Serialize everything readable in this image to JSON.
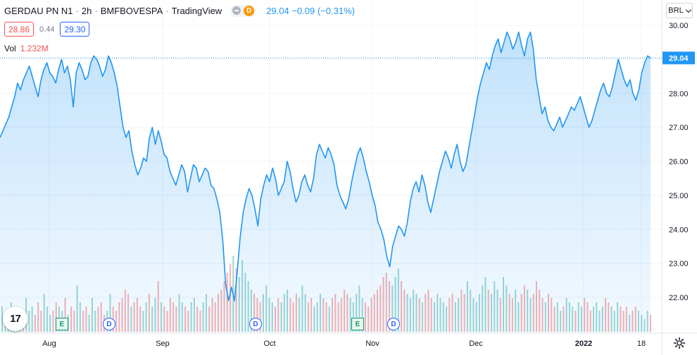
{
  "header": {
    "symbol": "GERDAU PN N1",
    "interval": "2h",
    "exchange": "BMFBOVESPA",
    "source": "TradingView",
    "separator": "·",
    "badge_letter": "D",
    "quote": "29.04 −0.09 (−0.31%)"
  },
  "ohlc": {
    "bid": "28.86",
    "spread": "0.44",
    "ask": "29.30"
  },
  "volume": {
    "label": "Vol",
    "value": "1.232M"
  },
  "currency": "BRL",
  "logo_text": "17",
  "events": [
    {
      "type": "E",
      "label": "E"
    },
    {
      "type": "D",
      "label": "D"
    },
    {
      "type": "D",
      "label": "D"
    },
    {
      "type": "E",
      "label": "E"
    },
    {
      "type": "D",
      "label": "D"
    }
  ],
  "colors": {
    "line": "#2196f3",
    "area": "#2196f3",
    "vol_up": "#26a69a",
    "vol_down": "#ef5350",
    "grid": "#f0f3fa"
  },
  "chart_data": {
    "type": "area",
    "title": "GERDAU PN N1",
    "ylabel": "",
    "ylim": [
      21.3,
      30.3
    ],
    "y_ticks": [
      "22.00",
      "23.00",
      "24.00",
      "25.00",
      "26.00",
      "27.00",
      "28.00",
      "29.00",
      "30.00"
    ],
    "x_ticks": [
      "Aug",
      "Sep",
      "Oct",
      "Nov",
      "Dec",
      "2022",
      "18"
    ],
    "last_price": "29.04",
    "grid": true,
    "series": [
      {
        "name": "",
        "values": [
          26.7,
          26.9,
          27.1,
          27.3,
          27.6,
          27.9,
          28.3,
          28.1,
          28.4,
          28.6,
          28.8,
          28.5,
          28.2,
          27.9,
          28.4,
          28.7,
          28.9,
          28.6,
          28.5,
          28.3,
          28.7,
          29.0,
          28.6,
          28.8,
          28.4,
          27.6,
          28.6,
          28.9,
          28.7,
          28.4,
          28.5,
          28.9,
          29.1,
          29.0,
          28.8,
          28.5,
          28.7,
          29.1,
          28.9,
          28.6,
          28.2,
          27.6,
          27.0,
          26.7,
          26.9,
          26.3,
          25.9,
          25.6,
          25.8,
          26.1,
          26.0,
          26.7,
          27.0,
          26.5,
          26.9,
          26.6,
          26.2,
          26.1,
          25.7,
          25.5,
          25.3,
          25.6,
          25.9,
          25.7,
          25.1,
          25.5,
          25.9,
          25.8,
          25.4,
          25.6,
          25.8,
          25.7,
          25.3,
          25.2,
          24.9,
          24.5,
          23.7,
          22.4,
          21.9,
          22.3,
          21.9,
          22.8,
          23.8,
          24.5,
          24.9,
          25.2,
          25.0,
          24.6,
          24.1,
          24.9,
          25.3,
          25.6,
          25.4,
          25.8,
          25.5,
          25.0,
          25.2,
          25.4,
          26.0,
          25.7,
          25.2,
          24.8,
          25.0,
          25.4,
          25.6,
          25.3,
          25.1,
          25.5,
          26.2,
          26.5,
          26.3,
          26.1,
          26.4,
          26.2,
          25.9,
          25.3,
          25.0,
          24.8,
          24.6,
          24.9,
          25.4,
          25.8,
          26.2,
          26.4,
          26.1,
          25.7,
          25.4,
          25.0,
          24.7,
          24.2,
          24.0,
          23.7,
          23.2,
          22.9,
          23.5,
          23.8,
          24.1,
          24.0,
          23.8,
          24.2,
          24.8,
          25.2,
          25.4,
          25.1,
          25.6,
          25.3,
          24.8,
          24.5,
          24.9,
          25.3,
          25.7,
          26.0,
          26.3,
          26.1,
          25.8,
          26.2,
          26.5,
          26.0,
          25.7,
          25.9,
          26.4,
          26.9,
          27.4,
          27.9,
          28.3,
          28.6,
          28.9,
          28.7,
          29.1,
          29.4,
          29.6,
          29.2,
          29.5,
          29.8,
          29.6,
          29.3,
          29.5,
          29.8,
          29.4,
          29.1,
          29.6,
          29.8,
          29.3,
          28.4,
          27.9,
          27.4,
          27.6,
          27.2,
          27.0,
          26.9,
          27.1,
          27.3,
          27.0,
          27.2,
          27.4,
          27.6,
          27.5,
          27.7,
          27.9,
          27.6,
          27.3,
          27.0,
          27.2,
          27.5,
          27.8,
          28.1,
          28.3,
          28.0,
          27.9,
          28.2,
          28.6,
          29.0,
          28.7,
          28.4,
          28.2,
          28.4,
          28.0,
          27.8,
          28.1,
          28.6,
          28.9,
          29.1,
          29.04
        ]
      }
    ],
    "volume_values": [
      0.6,
      0.4,
      0.5,
      0.7,
      0.3,
      0.6,
      0.5,
      0.4,
      0.8,
      0.5,
      0.6,
      0.4,
      0.7,
      0.5,
      0.9,
      0.6,
      0.4,
      0.5,
      0.7,
      0.6,
      0.5,
      0.8,
      0.4,
      0.6,
      0.5,
      1.1,
      0.7,
      0.5,
      0.6,
      0.4,
      0.8,
      0.5,
      0.6,
      0.7,
      0.4,
      0.5,
      0.9,
      0.6,
      0.5,
      0.7,
      0.8,
      1.0,
      0.9,
      0.6,
      0.7,
      0.8,
      0.6,
      0.5,
      0.7,
      0.9,
      0.6,
      0.8,
      1.2,
      0.7,
      0.6,
      0.5,
      0.8,
      0.7,
      0.6,
      0.9,
      0.7,
      0.6,
      0.5,
      0.7,
      0.8,
      0.6,
      0.5,
      0.7,
      0.9,
      0.6,
      0.8,
      0.7,
      0.9,
      1.0,
      1.2,
      1.4,
      1.6,
      1.8,
      1.5,
      1.3,
      1.7,
      1.4,
      1.2,
      1.0,
      0.9,
      0.8,
      0.7,
      0.9,
      1.1,
      0.8,
      0.7,
      0.6,
      0.8,
      0.7,
      0.9,
      1.0,
      0.8,
      0.7,
      0.9,
      0.8,
      1.1,
      0.9,
      0.7,
      0.8,
      0.6,
      0.7,
      0.9,
      0.8,
      0.7,
      0.6,
      0.8,
      0.9,
      0.7,
      0.8,
      1.0,
      0.9,
      0.8,
      0.7,
      0.9,
      1.1,
      0.8,
      0.7,
      0.6,
      0.8,
      0.9,
      1.0,
      1.1,
      1.3,
      1.4,
      1.2,
      1.1,
      1.3,
      1.5,
      1.2,
      1.0,
      0.9,
      0.8,
      1.0,
      0.9,
      0.8,
      0.7,
      0.9,
      1.0,
      0.8,
      0.7,
      0.9,
      0.8,
      0.7,
      0.6,
      0.8,
      0.9,
      0.7,
      0.8,
      1.0,
      0.9,
      1.2,
      1.0,
      0.8,
      0.7,
      0.9,
      1.1,
      1.3,
      1.0,
      0.9,
      1.2,
      1.0,
      0.8,
      1.3,
      1.1,
      0.9,
      0.8,
      1.0,
      0.7,
      0.9,
      1.1,
      1.0,
      0.8,
      0.9,
      1.2,
      1.0,
      0.8,
      0.7,
      0.9,
      0.8,
      0.6,
      0.7,
      0.5,
      0.6,
      0.8,
      0.7,
      0.6,
      0.5,
      0.7,
      0.6,
      0.8,
      0.7,
      0.5,
      0.6,
      0.7,
      0.5,
      0.6,
      0.8,
      0.7,
      0.6,
      0.5,
      0.7,
      0.6,
      0.5,
      0.6,
      0.4,
      0.5,
      0.6,
      0.5,
      0.4,
      0.3,
      0.5,
      0.4
    ]
  }
}
